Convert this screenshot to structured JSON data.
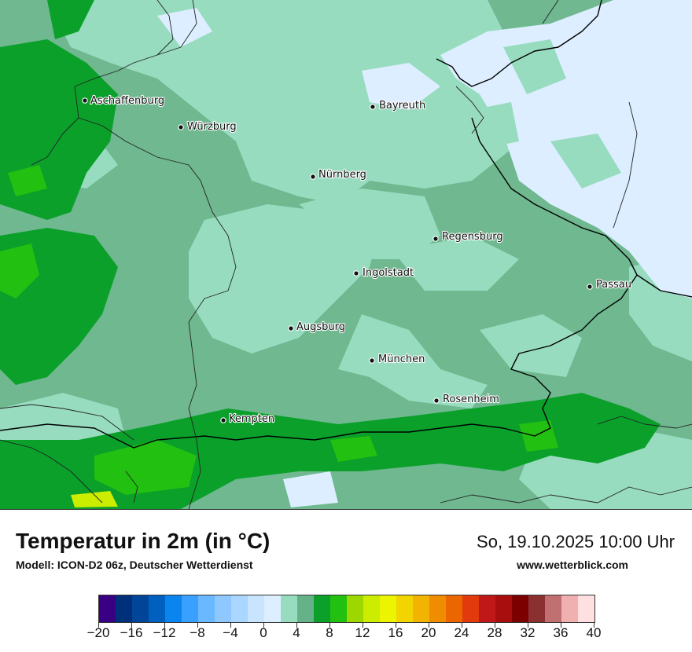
{
  "map": {
    "title": "Temperatur in 2m (in °C)",
    "model": "Modell: ICON-D2 06z, Deutscher Wetterdienst",
    "datetime": "So, 19.10.2025 10:00 Uhr",
    "website": "www.wetterblick.com",
    "cities": [
      {
        "name": "Aschaffenburg"
      },
      {
        "name": "Würzburg"
      },
      {
        "name": "Bayreuth"
      },
      {
        "name": "Nürnberg"
      },
      {
        "name": "Regensburg"
      },
      {
        "name": "Ingolstadt"
      },
      {
        "name": "Passau"
      },
      {
        "name": "Augsburg"
      },
      {
        "name": "München"
      },
      {
        "name": "Rosenheim"
      },
      {
        "name": "Kempten"
      }
    ]
  },
  "legend": {
    "colors": [
      "#3a0084",
      "#00307a",
      "#004598",
      "#0060c0",
      "#0a84ee",
      "#3aa0ff",
      "#6ab8ff",
      "#8ec8ff",
      "#aad6ff",
      "#c8e4ff",
      "#dceeff",
      "#98dcc0",
      "#66b288",
      "#0aa02a",
      "#22c010",
      "#9cd800",
      "#ccec00",
      "#ecf400",
      "#f2d400",
      "#f2b400",
      "#f08c00",
      "#ec6600",
      "#e23a0c",
      "#c01818",
      "#a80e0e",
      "#7c0000",
      "#8a3030",
      "#c07070",
      "#f0b0b0",
      "#ffe0e0"
    ],
    "tick_labels": [
      "−20",
      "−16",
      "−12",
      "−8",
      "−4",
      "0",
      "4",
      "8",
      "12",
      "16",
      "20",
      "24",
      "28",
      "32",
      "36",
      "40"
    ]
  }
}
